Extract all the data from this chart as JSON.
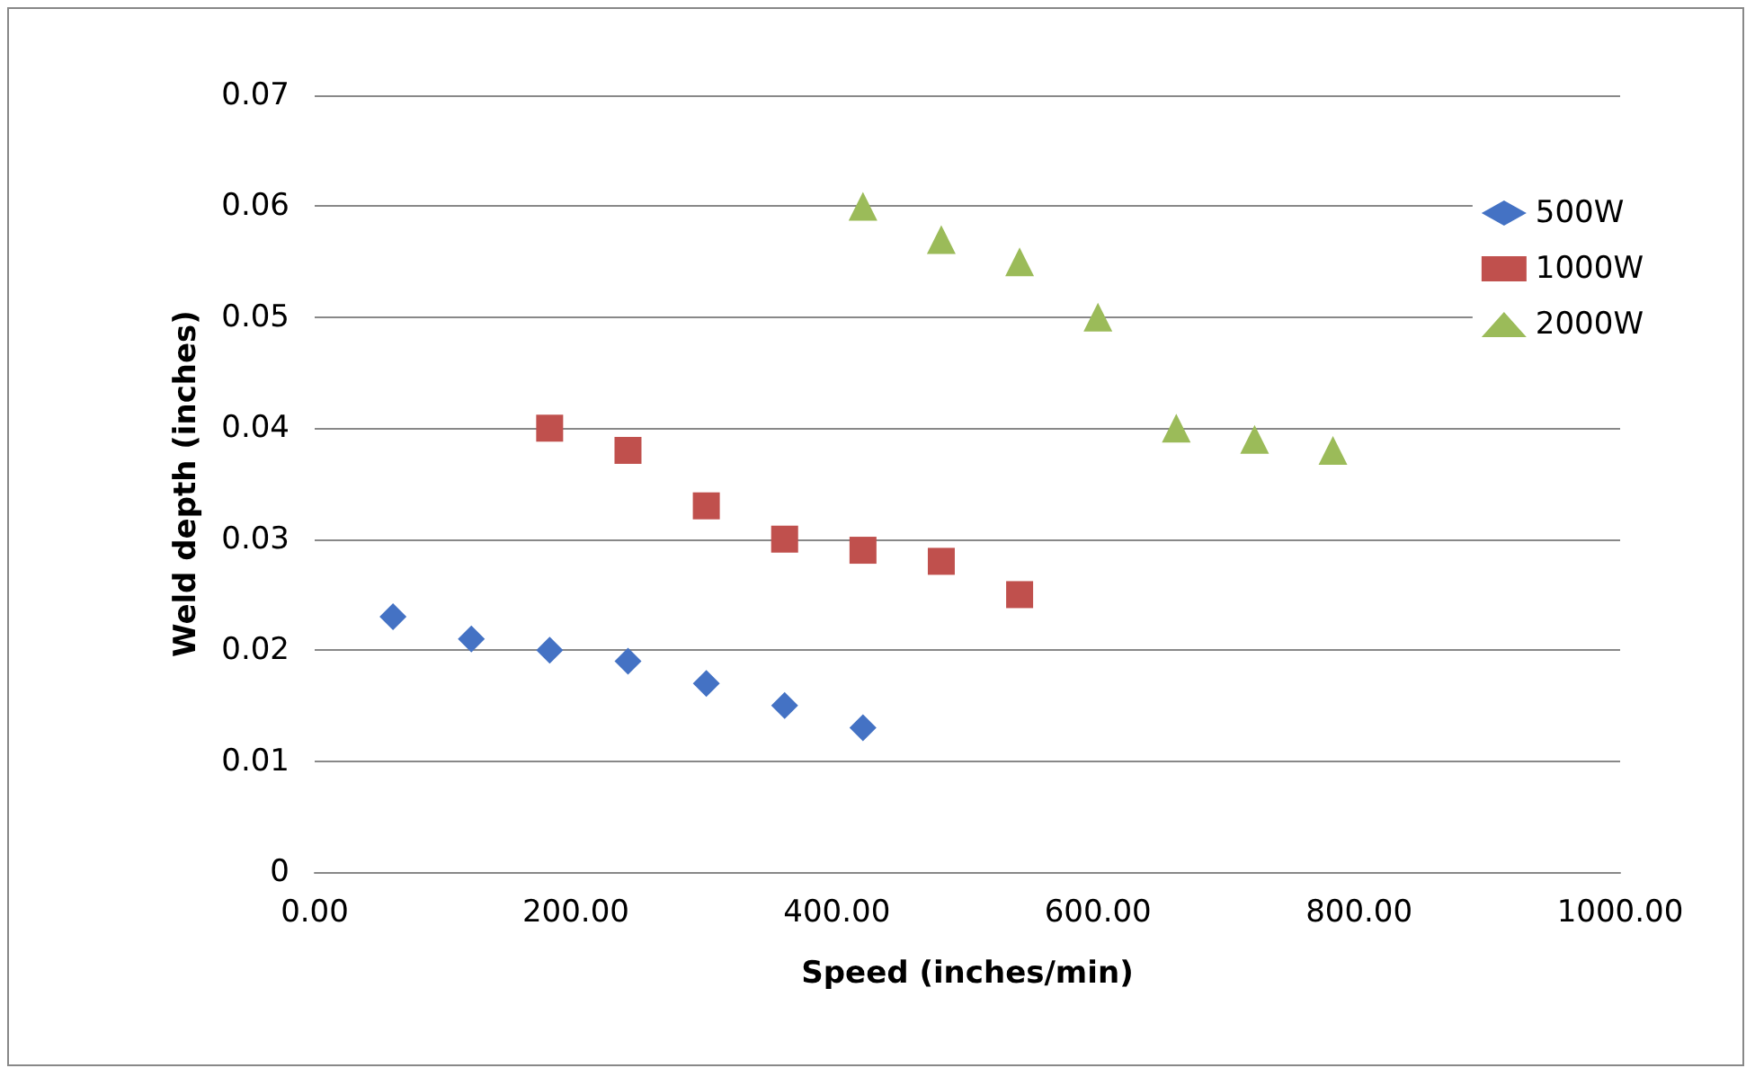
{
  "chart_data": {
    "type": "scatter",
    "xlabel": "Speed (inches/min)",
    "ylabel": "Weld depth (inches)",
    "xlim": [
      0,
      1000
    ],
    "xticks": [
      {
        "value": 0,
        "label": "0.00"
      },
      {
        "value": 200,
        "label": "200.00"
      },
      {
        "value": 400,
        "label": "400.00"
      },
      {
        "value": 600,
        "label": "600.00"
      },
      {
        "value": 800,
        "label": "800.00"
      },
      {
        "value": 1000,
        "label": "1000.00"
      }
    ],
    "ylim": [
      0,
      0.07
    ],
    "yticks": [
      0,
      0.01,
      0.02,
      0.03,
      0.04,
      0.05,
      0.06,
      0.07
    ],
    "grid": "y",
    "legend": "top right",
    "series": [
      {
        "name": "500W",
        "color": "#4472c4",
        "marker": "diamond",
        "x": [
          60,
          120,
          180,
          240,
          300,
          360,
          420
        ],
        "values": [
          0.023,
          0.021,
          0.02,
          0.019,
          0.017,
          0.015,
          0.013
        ]
      },
      {
        "name": "1000W",
        "color": "#c0504d",
        "marker": "square",
        "x": [
          180,
          240,
          300,
          360,
          420,
          480,
          540
        ],
        "values": [
          0.04,
          0.038,
          0.033,
          0.03,
          0.029,
          0.028,
          0.025
        ]
      },
      {
        "name": "2000W",
        "color": "#9bbb59",
        "marker": "triangle",
        "x": [
          420,
          480,
          540,
          600,
          660,
          720,
          780
        ],
        "values": [
          0.06,
          0.057,
          0.055,
          0.05,
          0.04,
          0.039,
          0.038
        ]
      }
    ]
  }
}
